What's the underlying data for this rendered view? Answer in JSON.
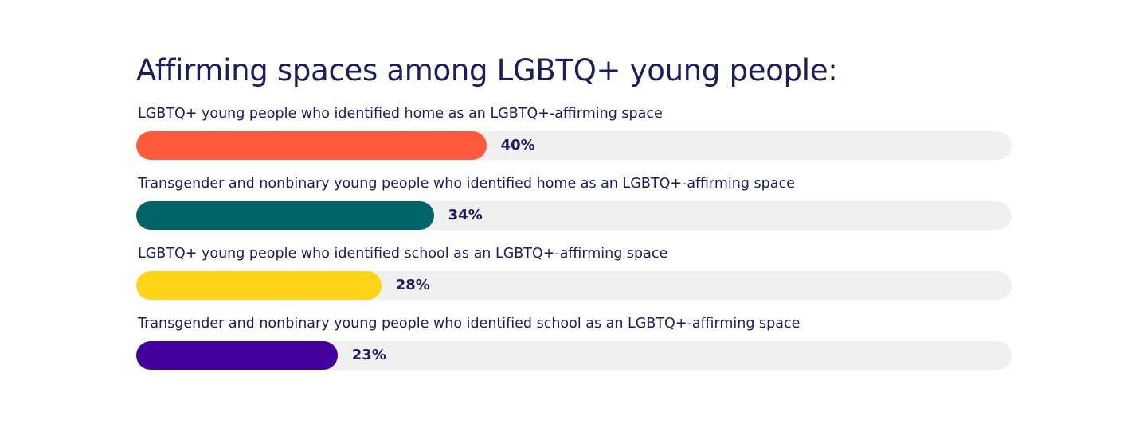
{
  "chart_data": {
    "type": "bar",
    "orientation": "horizontal",
    "title": "Affirming spaces among LGBTQ+ young people:",
    "xlim": [
      0,
      100
    ],
    "unit": "%",
    "grid": false,
    "legend": "none",
    "track_color": "#f0f0f0",
    "categories": [
      "LGBTQ+ young people who identified home as an LGBTQ+-affirming space",
      "Transgender and nonbinary young people who identified home as an LGBTQ+-affirming space",
      "LGBTQ+ young people who identified school as an LGBTQ+-affirming space",
      "Transgender and nonbinary young people who identified school as an LGBTQ+-affirming space"
    ],
    "values": [
      40,
      34,
      28,
      23
    ],
    "value_labels": [
      "40%",
      "34%",
      "28%",
      "23%"
    ],
    "colors": [
      "#ff5a3d",
      "#006469",
      "#ffd316",
      "#44009c"
    ]
  }
}
